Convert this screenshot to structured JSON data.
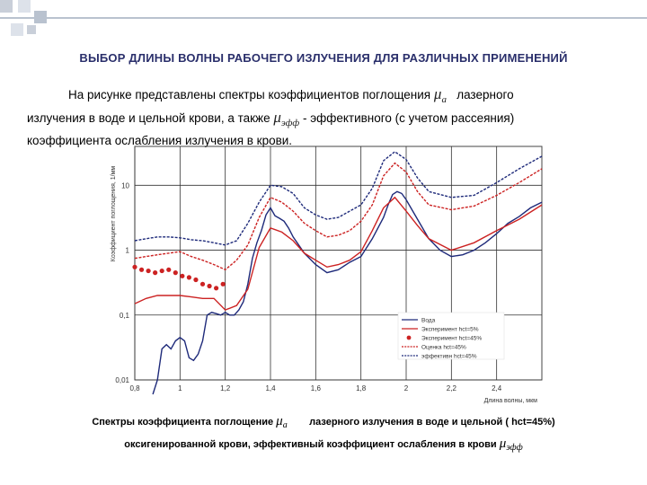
{
  "slide": {
    "title": "ВЫБОР ДЛИНЫ ВОЛНЫ РАБОЧЕГО ИЗЛУЧЕНИЯ ДЛЯ РАЗЛИЧНЫХ ПРИМЕНЕНИЙ",
    "intro_part1": "На рисунке представлены спектры коэффициентов поглощения",
    "mu_a_symbol": "μ",
    "mu_a_sub": "a",
    "intro_part2": "лазерного",
    "intro_part3": "излучения в воде и цельной крови, а также",
    "mu_eff_symbol": "μ",
    "mu_eff_sub": "эфф",
    "intro_part4": "- эффективного (с учетом рассеяния)",
    "intro_part5": "коэффициента ослабления излучения в крови.",
    "caption_line1_a": "Спектры коэффициента поглощение",
    "caption_line1_b": "лазерного излучения в воде и цельной ( hct=45%)",
    "caption_line2": "оксигенированной крови, эффективный коэффициент ослабления в крови"
  },
  "colors": {
    "accent": "#2a2f6b",
    "water": "#1e2a7a",
    "blood": "#cc2222",
    "deco_square": "#c9cfd9"
  },
  "chart_data": {
    "type": "line",
    "xlabel": "Длина волны, мкм",
    "ylabel": "Коэффициент поглощения, 1/мм",
    "xlim": [
      0.8,
      2.6
    ],
    "ylim_log10": [
      -2,
      1.6
    ],
    "y_scale": "log",
    "grid": true,
    "x_ticks": [
      "0,8",
      "1",
      "1,2",
      "1,4",
      "1,6",
      "1,8",
      "2",
      "2,2",
      "2,4"
    ],
    "x_tick_values": [
      0.8,
      1.0,
      1.2,
      1.4,
      1.6,
      1.8,
      2.0,
      2.2,
      2.4
    ],
    "y_ticks": [
      "10",
      "1",
      "0,1",
      "0,01"
    ],
    "y_tick_values": [
      10,
      1,
      0.1,
      0.01
    ],
    "legend": {
      "placement": "bottom-right",
      "entries": [
        "Вода",
        "Эксперимент hct=5%",
        "Эксперимент hct=45%",
        "Оценка hct=45%",
        "эффективн hct=45%"
      ]
    },
    "series": [
      {
        "name": "Вода",
        "color": "#1e2a7a",
        "style": "solid",
        "x": [
          0.88,
          0.9,
          0.92,
          0.94,
          0.96,
          0.98,
          1.0,
          1.02,
          1.04,
          1.06,
          1.08,
          1.1,
          1.12,
          1.14,
          1.16,
          1.18,
          1.2,
          1.22,
          1.24,
          1.26,
          1.28,
          1.3,
          1.32,
          1.34,
          1.36,
          1.38,
          1.4,
          1.42,
          1.44,
          1.46,
          1.48,
          1.5,
          1.55,
          1.6,
          1.65,
          1.7,
          1.75,
          1.8,
          1.85,
          1.9,
          1.92,
          1.94,
          1.96,
          1.98,
          2.0,
          2.05,
          2.1,
          2.15,
          2.2,
          2.25,
          2.3,
          2.35,
          2.4,
          2.45,
          2.5,
          2.55,
          2.6
        ],
        "y": [
          0.006,
          0.01,
          0.03,
          0.035,
          0.03,
          0.04,
          0.045,
          0.04,
          0.022,
          0.02,
          0.025,
          0.04,
          0.1,
          0.11,
          0.105,
          0.1,
          0.11,
          0.1,
          0.1,
          0.12,
          0.16,
          0.3,
          0.75,
          1.3,
          2,
          3.5,
          4.5,
          3.4,
          3.1,
          2.8,
          2.2,
          1.6,
          0.9,
          0.6,
          0.45,
          0.5,
          0.65,
          0.8,
          1.5,
          3.2,
          5,
          7.2,
          8.0,
          7.5,
          6.0,
          3.0,
          1.5,
          1.0,
          0.8,
          0.85,
          1.0,
          1.3,
          1.8,
          2.6,
          3.3,
          4.5,
          5.5
        ]
      },
      {
        "name": "Эксперимент hct=5%",
        "color": "#cc2222",
        "style": "solid",
        "x": [
          0.8,
          0.85,
          0.9,
          0.95,
          1.0,
          1.05,
          1.1,
          1.15,
          1.2,
          1.25,
          1.3,
          1.35,
          1.4,
          1.45,
          1.5,
          1.55,
          1.6,
          1.65,
          1.7,
          1.75,
          1.8,
          1.85,
          1.9,
          1.95,
          2.0,
          2.05,
          2.1,
          2.2,
          2.3,
          2.4,
          2.5,
          2.6
        ],
        "y": [
          0.15,
          0.18,
          0.2,
          0.2,
          0.2,
          0.19,
          0.18,
          0.18,
          0.12,
          0.14,
          0.25,
          1.1,
          2.2,
          1.9,
          1.4,
          0.9,
          0.7,
          0.55,
          0.6,
          0.7,
          0.95,
          2,
          4.5,
          6.5,
          4,
          2.4,
          1.5,
          1,
          1.3,
          2,
          3,
          5
        ]
      },
      {
        "name": "Эксперимент hct=45%",
        "color": "#cc2222",
        "style": "dots",
        "x": [
          0.8,
          0.83,
          0.86,
          0.89,
          0.92,
          0.95,
          0.98,
          1.01,
          1.04,
          1.07,
          1.1,
          1.13,
          1.16,
          1.19
        ],
        "y": [
          0.55,
          0.5,
          0.48,
          0.45,
          0.48,
          0.5,
          0.45,
          0.4,
          0.38,
          0.35,
          0.3,
          0.28,
          0.26,
          0.3
        ]
      },
      {
        "name": "Оценка hct=45%",
        "color": "#cc2222",
        "style": "dashed",
        "x": [
          0.8,
          0.85,
          0.9,
          0.95,
          1.0,
          1.05,
          1.1,
          1.15,
          1.2,
          1.25,
          1.3,
          1.35,
          1.4,
          1.45,
          1.5,
          1.55,
          1.6,
          1.65,
          1.7,
          1.75,
          1.8,
          1.85,
          1.9,
          1.95,
          2.0,
          2.05,
          2.1,
          2.2,
          2.3,
          2.4,
          2.5,
          2.6
        ],
        "y": [
          0.75,
          0.8,
          0.85,
          0.9,
          0.95,
          0.8,
          0.7,
          0.6,
          0.5,
          0.7,
          1.2,
          3.2,
          6.5,
          5.5,
          4,
          2.6,
          2,
          1.6,
          1.7,
          2,
          2.8,
          5,
          14,
          22,
          16,
          8,
          5,
          4.2,
          4.8,
          7,
          11,
          18
        ]
      },
      {
        "name": "эффективн hct=45%",
        "color": "#1e2a7a",
        "style": "dashed",
        "x": [
          0.8,
          0.85,
          0.9,
          0.95,
          1.0,
          1.05,
          1.1,
          1.15,
          1.2,
          1.25,
          1.3,
          1.35,
          1.4,
          1.45,
          1.5,
          1.55,
          1.6,
          1.65,
          1.7,
          1.75,
          1.8,
          1.85,
          1.9,
          1.95,
          2.0,
          2.05,
          2.1,
          2.2,
          2.3,
          2.4,
          2.5,
          2.6
        ],
        "y": [
          1.4,
          1.5,
          1.6,
          1.6,
          1.55,
          1.45,
          1.4,
          1.3,
          1.2,
          1.4,
          2.6,
          5.5,
          10,
          9.5,
          7.5,
          4.5,
          3.5,
          3.0,
          3.2,
          4.0,
          5,
          9,
          24,
          33,
          25,
          13,
          8,
          6.5,
          7,
          11,
          18,
          28
        ]
      }
    ]
  }
}
